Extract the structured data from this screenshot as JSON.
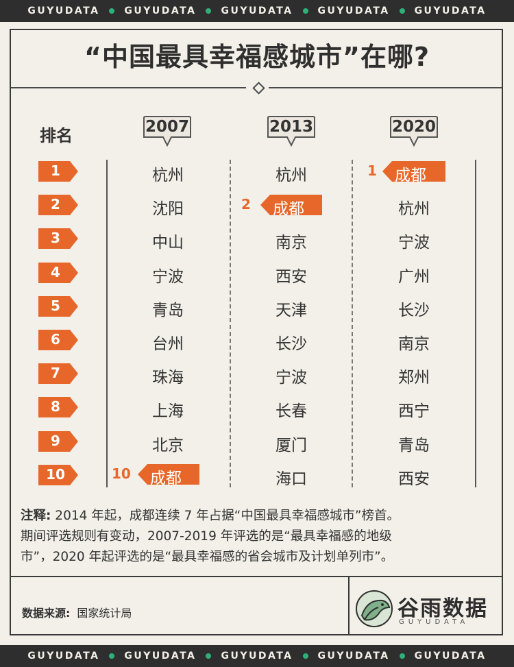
{
  "band": {
    "word": "GUYUDATA"
  },
  "title": "“中国最具幸福感城市”在哪?",
  "rank_header": "排名",
  "years": [
    "2007",
    "2013",
    "2020"
  ],
  "ranks": [
    "1",
    "2",
    "3",
    "4",
    "5",
    "6",
    "7",
    "8",
    "9",
    "10"
  ],
  "col2007": [
    "杭州",
    "沈阳",
    "中山",
    "宁波",
    "青岛",
    "台州",
    "珠海",
    "上海",
    "北京",
    "成都"
  ],
  "col2013": [
    "杭州",
    "成都",
    "南京",
    "西安",
    "天津",
    "长沙",
    "宁波",
    "长春",
    "厦门",
    "海口"
  ],
  "col2020": [
    "成都",
    "杭州",
    "宁波",
    "广州",
    "长沙",
    "南京",
    "郑州",
    "西宁",
    "青岛",
    "西安"
  ],
  "highlight": {
    "h2007": {
      "num": "10",
      "city": "成都"
    },
    "h2013": {
      "num": "2",
      "city": "成都"
    },
    "h2020": {
      "num": "1",
      "city": "成都"
    }
  },
  "note": {
    "label": "注释:",
    "line1": "2014 年起，成都连续 7 年占据“中国最具幸福感城市”榜首。",
    "line2": "期间评选规则有变动，2007-2019 年评选的是“最具幸福感的地级",
    "line3": "市”，2020 年起评选的是“最具幸福感的省会城市及计划单列市”。"
  },
  "source": {
    "label": "数据来源:",
    "value": "国家统计局"
  },
  "logo": {
    "cn": "谷雨数据",
    "en": "GUYUDATA"
  },
  "colors": {
    "accent": "#e7672a",
    "dark": "#2e2e2e",
    "green": "#2fb07a",
    "bg": "#f3f0e9"
  }
}
